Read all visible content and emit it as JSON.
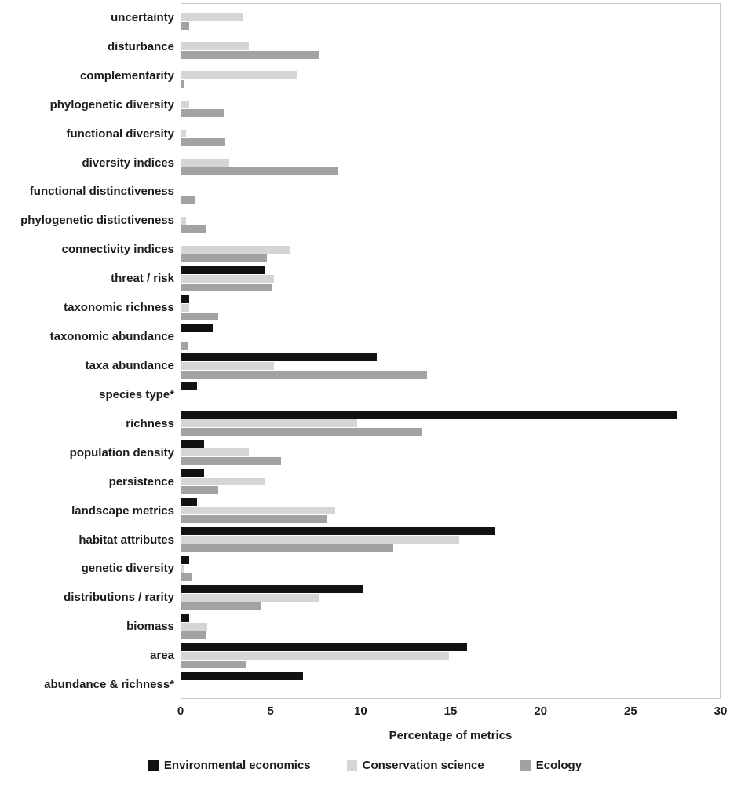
{
  "chart_data": {
    "type": "bar",
    "orientation": "horizontal",
    "title": "",
    "xlabel": "Percentage of metrics",
    "ylabel": "",
    "xlim": [
      0,
      30
    ],
    "x_ticks": [
      0,
      5,
      10,
      15,
      20,
      25,
      30
    ],
    "grid": false,
    "legend_position": "bottom",
    "plot_border_color": "#c9c9c9",
    "text_color": "#1c1c1c",
    "categories": [
      "uncertainty",
      "disturbance",
      "complementarity",
      "phylogenetic diversity",
      "functional diversity",
      "diversity indices",
      "functional distinctiveness",
      "phylogenetic distictiveness",
      "connectivity indices",
      "threat / risk",
      "taxonomic richness",
      "taxonomic abundance",
      "taxa abundance",
      "species type*",
      "richness",
      "population density",
      "persistence",
      "landscape metrics",
      "habitat attributes",
      "genetic diversity",
      "distributions / rarity",
      "biomass",
      "area",
      "abundance & richness*"
    ],
    "series": [
      {
        "name": "Environmental economics",
        "color": "#111111",
        "values": [
          0,
          0,
          0,
          0,
          0,
          0,
          0,
          0,
          0,
          4.7,
          0.5,
          1.8,
          10.9,
          0.9,
          27.6,
          1.3,
          1.3,
          0.9,
          17.5,
          0.5,
          10.1,
          0.5,
          15.9,
          6.8
        ]
      },
      {
        "name": "Conservation science",
        "color": "#d5d5d5",
        "values": [
          3.5,
          3.8,
          6.5,
          0.5,
          0.3,
          2.7,
          0,
          0.3,
          6.1,
          5.2,
          0.5,
          0,
          5.2,
          0,
          9.8,
          3.8,
          4.7,
          8.6,
          15.5,
          0.2,
          7.7,
          1.5,
          14.9,
          0
        ]
      },
      {
        "name": "Ecology",
        "color": "#a2a2a2",
        "values": [
          0.5,
          7.7,
          0.2,
          2.4,
          2.5,
          8.7,
          0.8,
          1.4,
          4.8,
          5.1,
          2.1,
          0.4,
          13.7,
          0,
          13.4,
          5.6,
          2.1,
          8.1,
          11.8,
          0.6,
          4.5,
          1.4,
          3.6,
          0
        ]
      }
    ]
  }
}
